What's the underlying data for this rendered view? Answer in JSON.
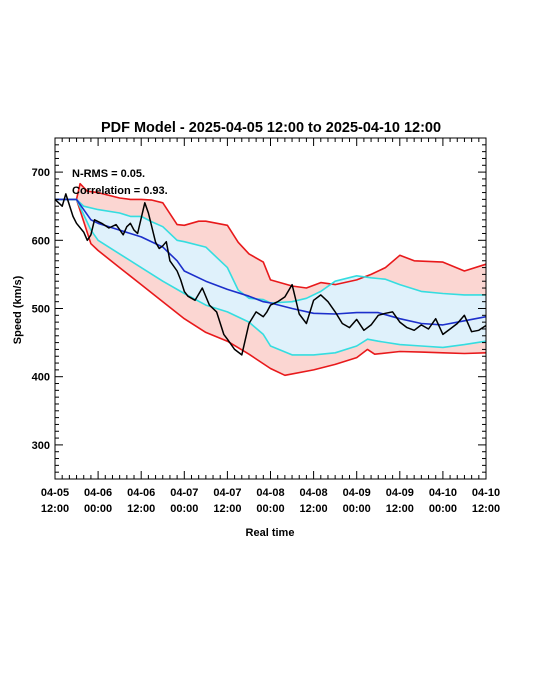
{
  "chart_data": {
    "type": "line",
    "title": "PDF Model - 2025-04-05 12:00 to 2025-04-10 12:00",
    "xlabel": "Real time",
    "ylabel": "Speed (km/s)",
    "ylim": [
      250,
      750
    ],
    "xlim": [
      "2025-04-05 12:00",
      "2025-04-10 12:00"
    ],
    "yticks": [
      300,
      400,
      500,
      600,
      700
    ],
    "xticks": [
      {
        "date": "04-05",
        "time": "12:00"
      },
      {
        "date": "04-06",
        "time": "00:00"
      },
      {
        "date": "04-06",
        "time": "12:00"
      },
      {
        "date": "04-07",
        "time": "00:00"
      },
      {
        "date": "04-07",
        "time": "12:00"
      },
      {
        "date": "04-08",
        "time": "00:00"
      },
      {
        "date": "04-08",
        "time": "12:00"
      },
      {
        "date": "04-09",
        "time": "00:00"
      },
      {
        "date": "04-09",
        "time": "12:00"
      },
      {
        "date": "04-10",
        "time": "00:00"
      },
      {
        "date": "04-10",
        "time": "12:00"
      }
    ],
    "annotations": [
      "N-RMS = 0.05.",
      "Correlation = 0.93."
    ],
    "colors": {
      "outer_band_fill": "#fbd6d2",
      "outer_band_line": "#e8191b",
      "inner_band_fill": "#dff1fb",
      "inner_band_line": "#35dde0",
      "model_line": "#1c2fcb",
      "observed_line": "#000000"
    },
    "series": [
      {
        "role": "outer-upper",
        "x": [
          "2025-04-05 12:00",
          "2025-04-05 18:00",
          "2025-04-05 19:00",
          "2025-04-05 21:00",
          "2025-04-06 00:00",
          "2025-04-06 06:00",
          "2025-04-06 09:00",
          "2025-04-06 12:00",
          "2025-04-06 15:00",
          "2025-04-06 18:00",
          "2025-04-06 22:00",
          "2025-04-07 00:00",
          "2025-04-07 04:00",
          "2025-04-07 06:00",
          "2025-04-07 12:00",
          "2025-04-07 15:00",
          "2025-04-07 18:00",
          "2025-04-07 22:00",
          "2025-04-08 00:00",
          "2025-04-08 06:00",
          "2025-04-08 10:00",
          "2025-04-08 14:00",
          "2025-04-08 18:00",
          "2025-04-09 00:00",
          "2025-04-09 04:00",
          "2025-04-09 08:00",
          "2025-04-09 12:00",
          "2025-04-09 16:00",
          "2025-04-10 00:00",
          "2025-04-10 06:00",
          "2025-04-10 12:00"
        ],
        "values": [
          660,
          660,
          683,
          672,
          670,
          662,
          660,
          660,
          659,
          655,
          623,
          622,
          628,
          628,
          622,
          597,
          580,
          568,
          542,
          533,
          530,
          538,
          535,
          542,
          550,
          560,
          578,
          570,
          568,
          555,
          565
        ]
      },
      {
        "role": "inner-upper",
        "x": [
          "2025-04-05 12:00",
          "2025-04-05 18:00",
          "2025-04-05 20:00",
          "2025-04-06 00:00",
          "2025-04-06 06:00",
          "2025-04-06 09:00",
          "2025-04-06 12:00",
          "2025-04-06 15:00",
          "2025-04-06 18:00",
          "2025-04-06 22:00",
          "2025-04-07 00:00",
          "2025-04-07 06:00",
          "2025-04-07 12:00",
          "2025-04-07 15:00",
          "2025-04-07 18:00",
          "2025-04-07 22:00",
          "2025-04-08 00:00",
          "2025-04-08 06:00",
          "2025-04-08 10:00",
          "2025-04-08 14:00",
          "2025-04-08 18:00",
          "2025-04-09 00:00",
          "2025-04-09 04:00",
          "2025-04-09 08:00",
          "2025-04-09 12:00",
          "2025-04-09 18:00",
          "2025-04-10 00:00",
          "2025-04-10 06:00",
          "2025-04-10 12:00"
        ],
        "values": [
          660,
          660,
          650,
          645,
          640,
          635,
          635,
          627,
          620,
          600,
          598,
          590,
          560,
          527,
          515,
          513,
          508,
          510,
          515,
          525,
          540,
          548,
          545,
          543,
          535,
          525,
          522,
          520,
          520
        ]
      },
      {
        "role": "model",
        "x": [
          "2025-04-05 12:00",
          "2025-04-05 18:00",
          "2025-04-05 22:00",
          "2025-04-06 00:00",
          "2025-04-06 06:00",
          "2025-04-06 12:00",
          "2025-04-06 18:00",
          "2025-04-06 22:00",
          "2025-04-07 00:00",
          "2025-04-07 06:00",
          "2025-04-07 12:00",
          "2025-04-07 18:00",
          "2025-04-07 22:00",
          "2025-04-08 00:00",
          "2025-04-08 06:00",
          "2025-04-08 12:00",
          "2025-04-08 18:00",
          "2025-04-09 00:00",
          "2025-04-09 06:00",
          "2025-04-09 10:00",
          "2025-04-09 12:00",
          "2025-04-09 18:00",
          "2025-04-10 00:00",
          "2025-04-10 06:00",
          "2025-04-10 12:00"
        ],
        "values": [
          660,
          660,
          630,
          625,
          615,
          605,
          590,
          570,
          555,
          540,
          528,
          518,
          510,
          508,
          500,
          493,
          492,
          494,
          494,
          488,
          485,
          478,
          476,
          482,
          488
        ]
      },
      {
        "role": "inner-lower",
        "x": [
          "2025-04-05 12:00",
          "2025-04-05 18:00",
          "2025-04-05 22:00",
          "2025-04-06 00:00",
          "2025-04-06 06:00",
          "2025-04-06 12:00",
          "2025-04-06 18:00",
          "2025-04-07 00:00",
          "2025-04-07 06:00",
          "2025-04-07 12:00",
          "2025-04-07 18:00",
          "2025-04-07 22:00",
          "2025-04-08 00:00",
          "2025-04-08 06:00",
          "2025-04-08 12:00",
          "2025-04-08 18:00",
          "2025-04-09 00:00",
          "2025-04-09 03:00",
          "2025-04-09 06:00",
          "2025-04-09 12:00",
          "2025-04-09 18:00",
          "2025-04-10 00:00",
          "2025-04-10 06:00",
          "2025-04-10 12:00"
        ],
        "values": [
          660,
          660,
          615,
          600,
          580,
          560,
          540,
          522,
          505,
          495,
          480,
          462,
          445,
          432,
          432,
          435,
          445,
          455,
          452,
          447,
          445,
          443,
          447,
          452
        ]
      },
      {
        "role": "outer-lower",
        "x": [
          "2025-04-05 12:00",
          "2025-04-05 18:00",
          "2025-04-05 22:00",
          "2025-04-06 00:00",
          "2025-04-06 06:00",
          "2025-04-06 12:00",
          "2025-04-06 18:00",
          "2025-04-07 00:00",
          "2025-04-07 06:00",
          "2025-04-07 12:00",
          "2025-04-07 18:00",
          "2025-04-08 00:00",
          "2025-04-08 04:00",
          "2025-04-08 12:00",
          "2025-04-08 18:00",
          "2025-04-09 00:00",
          "2025-04-09 03:00",
          "2025-04-09 05:00",
          "2025-04-09 12:00",
          "2025-04-09 18:00",
          "2025-04-10 00:00",
          "2025-04-10 06:00",
          "2025-04-10 12:00"
        ],
        "values": [
          660,
          660,
          595,
          585,
          560,
          535,
          510,
          485,
          465,
          452,
          433,
          412,
          402,
          410,
          418,
          428,
          440,
          433,
          437,
          436,
          435,
          434,
          435
        ]
      },
      {
        "role": "observed",
        "x": [
          "2025-04-05 12:00",
          "2025-04-05 14:00",
          "2025-04-05 15:00",
          "2025-04-05 17:00",
          "2025-04-05 18:00",
          "2025-04-05 20:00",
          "2025-04-05 21:00",
          "2025-04-05 22:00",
          "2025-04-05 23:00",
          "2025-04-06 01:00",
          "2025-04-06 03:00",
          "2025-04-06 05:00",
          "2025-04-06 07:00",
          "2025-04-06 08:00",
          "2025-04-06 09:00",
          "2025-04-06 10:00",
          "2025-04-06 11:00",
          "2025-04-06 13:00",
          "2025-04-06 14:00",
          "2025-04-06 16:00",
          "2025-04-06 17:00",
          "2025-04-06 18:00",
          "2025-04-06 19:00",
          "2025-04-06 20:00",
          "2025-04-06 22:00",
          "2025-04-06 23:00",
          "2025-04-07 00:00",
          "2025-04-07 01:00",
          "2025-04-07 03:00",
          "2025-04-07 05:00",
          "2025-04-07 07:00",
          "2025-04-07 09:00",
          "2025-04-07 11:00",
          "2025-04-07 12:00",
          "2025-04-07 14:00",
          "2025-04-07 16:00",
          "2025-04-07 18:00",
          "2025-04-07 20:00",
          "2025-04-07 22:00",
          "2025-04-07 23:00",
          "2025-04-08 00:00",
          "2025-04-08 02:00",
          "2025-04-08 04:00",
          "2025-04-08 06:00",
          "2025-04-08 08:00",
          "2025-04-08 10:00",
          "2025-04-08 12:00",
          "2025-04-08 14:00",
          "2025-04-08 16:00",
          "2025-04-08 18:00",
          "2025-04-08 20:00",
          "2025-04-08 22:00",
          "2025-04-09 00:00",
          "2025-04-09 02:00",
          "2025-04-09 04:00",
          "2025-04-09 06:00",
          "2025-04-09 08:00",
          "2025-04-09 10:00",
          "2025-04-09 12:00",
          "2025-04-09 14:00",
          "2025-04-09 16:00",
          "2025-04-09 18:00",
          "2025-04-09 20:00",
          "2025-04-09 22:00",
          "2025-04-10 00:00",
          "2025-04-10 02:00",
          "2025-04-10 04:00",
          "2025-04-10 06:00",
          "2025-04-10 08:00",
          "2025-04-10 10:00",
          "2025-04-10 12:00"
        ],
        "values": [
          660,
          650,
          668,
          635,
          625,
          612,
          600,
          608,
          630,
          625,
          618,
          623,
          608,
          620,
          625,
          615,
          610,
          655,
          640,
          597,
          588,
          592,
          598,
          570,
          555,
          542,
          525,
          518,
          512,
          530,
          505,
          495,
          462,
          455,
          440,
          432,
          478,
          495,
          488,
          495,
          505,
          510,
          517,
          535,
          492,
          478,
          512,
          520,
          510,
          495,
          478,
          472,
          484,
          468,
          476,
          490,
          493,
          495,
          480,
          472,
          468,
          476,
          470,
          485,
          462,
          470,
          478,
          490,
          466,
          468,
          475
        ]
      }
    ]
  }
}
